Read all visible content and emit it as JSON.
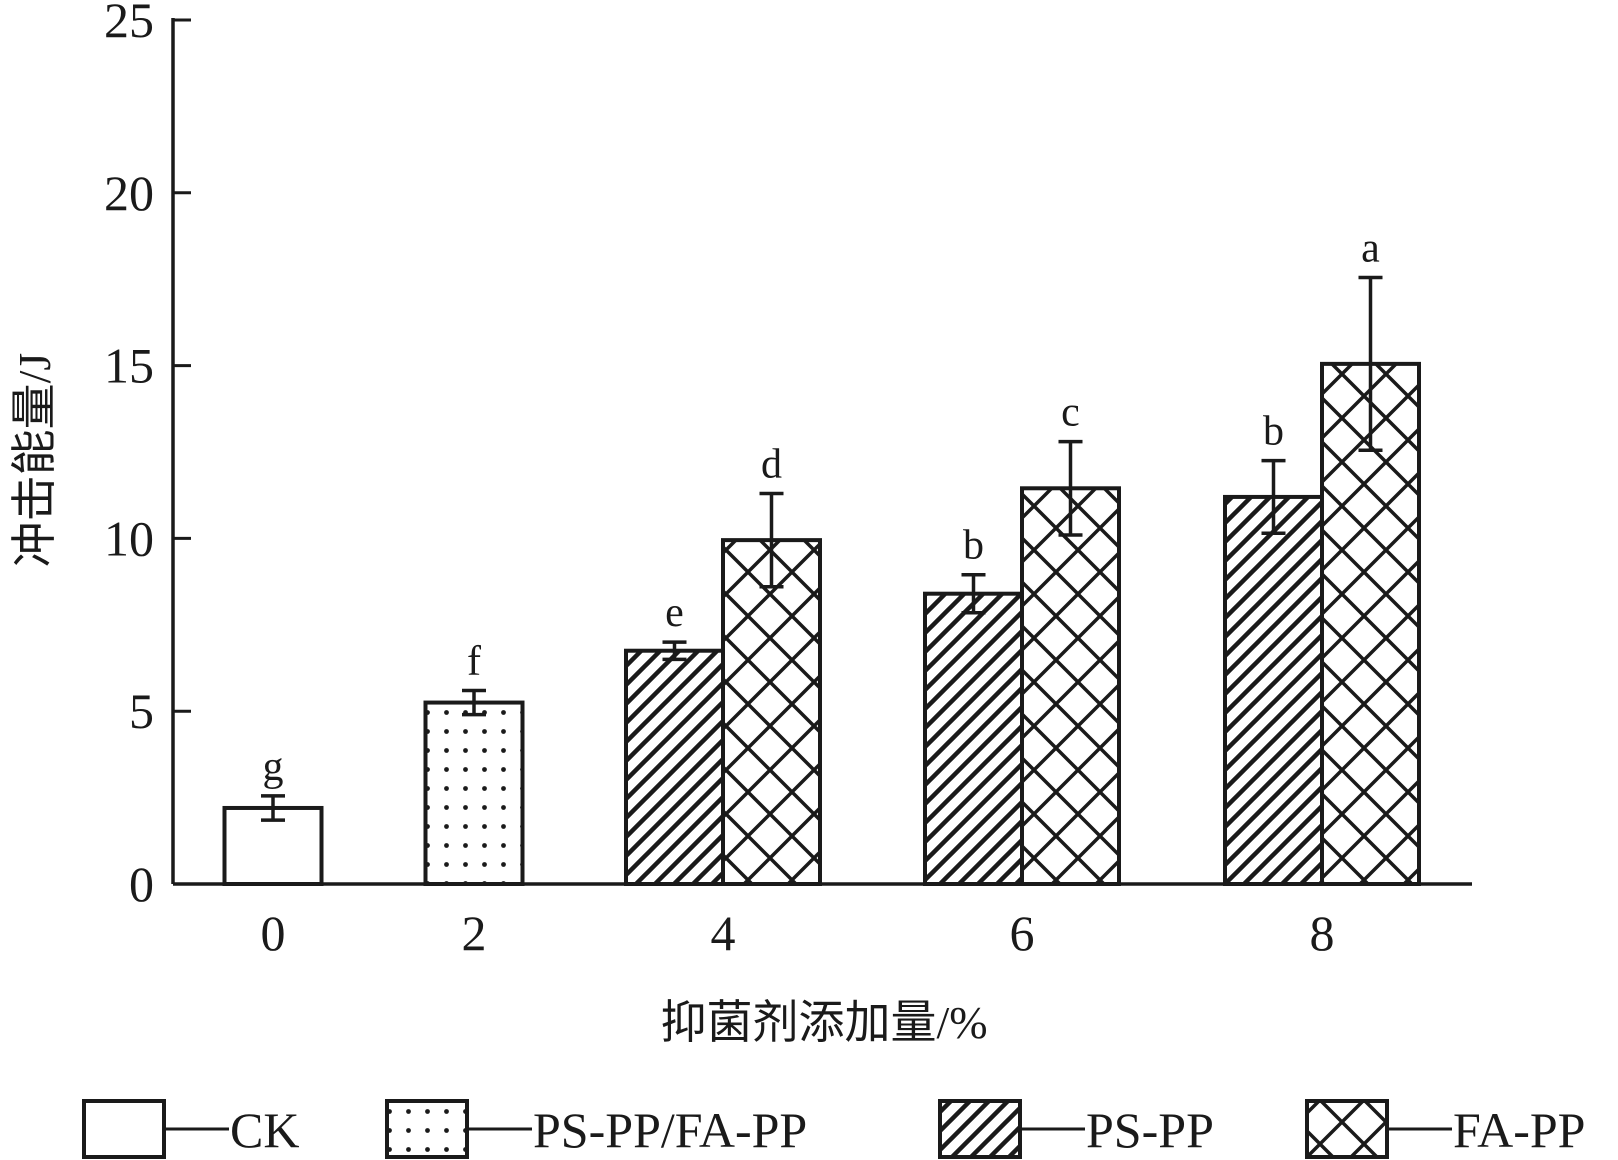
{
  "chart_data": {
    "type": "bar",
    "xlabel": "抑菌剂添加量/%",
    "ylabel": "冲击能量/J",
    "ylim": [
      0,
      25
    ],
    "yticks": [
      "0",
      "5",
      "10",
      "15",
      "20",
      "25"
    ],
    "categories": [
      "0",
      "2",
      "4",
      "6",
      "8"
    ],
    "series": [
      {
        "name": "CK",
        "pattern": "none",
        "points": [
          {
            "category": "0",
            "value": 2.2,
            "error": 0.35,
            "label": "g"
          }
        ]
      },
      {
        "name": "PS-PP/FA-PP",
        "pattern": "dots",
        "points": [
          {
            "category": "2",
            "value": 5.25,
            "error": 0.35,
            "label": "f"
          }
        ]
      },
      {
        "name": "PS-PP",
        "pattern": "diagonal",
        "points": [
          {
            "category": "4",
            "value": 6.75,
            "error": 0.25,
            "label": "e"
          },
          {
            "category": "6",
            "value": 8.4,
            "error": 0.55,
            "label": "b"
          },
          {
            "category": "8",
            "value": 11.2,
            "error": 1.05,
            "label": "b"
          }
        ]
      },
      {
        "name": "FA-PP",
        "pattern": "crosshatch",
        "points": [
          {
            "category": "4",
            "value": 9.95,
            "error": 1.35,
            "label": "d"
          },
          {
            "category": "6",
            "value": 11.45,
            "error": 1.35,
            "label": "c"
          },
          {
            "category": "8",
            "value": 15.05,
            "error": 2.5,
            "label": "a"
          }
        ]
      }
    ],
    "legend": {
      "position": "bottom"
    },
    "grid": false
  }
}
